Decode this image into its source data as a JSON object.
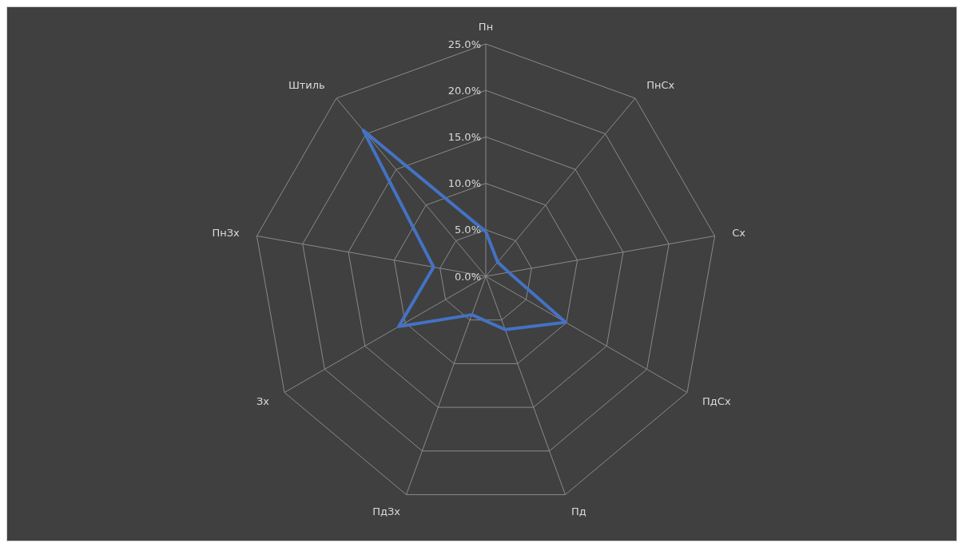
{
  "chart_data": {
    "type": "radar",
    "categories": [
      "Пн",
      "ПнСх",
      "Сх",
      "ПдСх",
      "Пд",
      "ПдЗх",
      "Зх",
      "ПнЗх",
      "Штиль"
    ],
    "series": [
      {
        "color": "#4472c4",
        "values": [
          4.8,
          2.0,
          2.5,
          9.9,
          6.1,
          4.4,
          10.8,
          5.7,
          20.5
        ]
      }
    ],
    "ylim": [
      0,
      25
    ],
    "yticks": [
      {
        "value": 0,
        "label": "0.0%"
      },
      {
        "value": 5,
        "label": "5.0%"
      },
      {
        "value": 10,
        "label": "10.0%"
      },
      {
        "value": 15,
        "label": "15.0%"
      },
      {
        "value": 20,
        "label": "20.0%"
      },
      {
        "value": 25,
        "label": "25.0%"
      }
    ],
    "grid": true,
    "marker": "none",
    "line_style": "solid"
  }
}
